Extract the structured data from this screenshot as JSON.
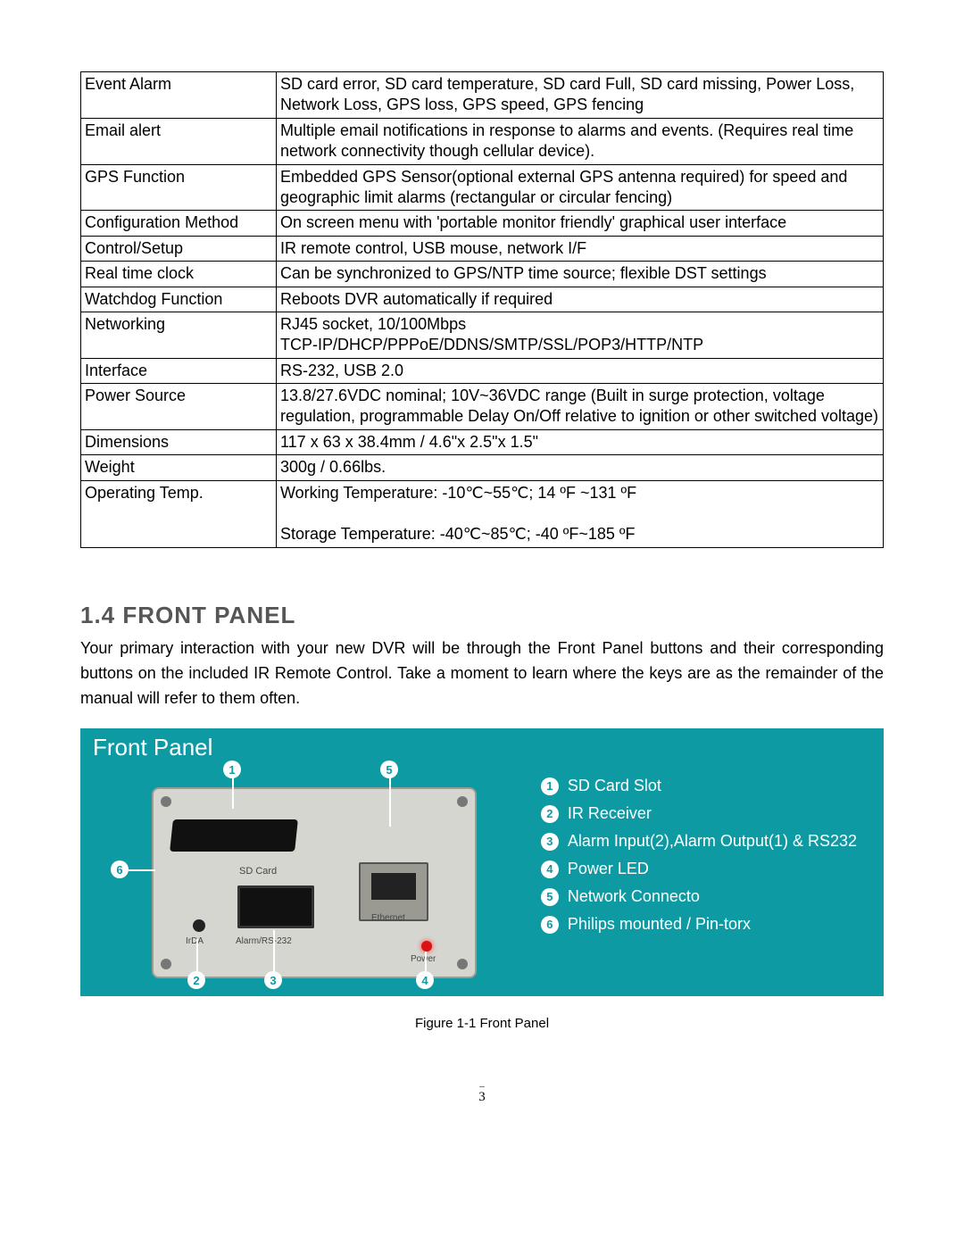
{
  "spec_table": {
    "rows": [
      {
        "label": "Event Alarm",
        "value": "SD card error, SD card temperature, SD card Full, SD card missing, Power Loss, Network Loss, GPS loss, GPS speed, GPS fencing"
      },
      {
        "label": "Email alert",
        "value": "Multiple email notifications in response to alarms and events. (Requires real time network connectivity though cellular device)."
      },
      {
        "label": "GPS Function",
        "value": "Embedded GPS Sensor(optional external GPS antenna required) for speed and geographic limit alarms (rectangular or circular fencing)"
      },
      {
        "label": "Configuration Method",
        "value": "On screen menu with 'portable monitor friendly' graphical user interface"
      },
      {
        "label": "Control/Setup",
        "value": "IR remote control, USB mouse, network I/F"
      },
      {
        "label": "Real time clock",
        "value": "Can be synchronized to GPS/NTP time source; flexible DST settings"
      },
      {
        "label": "Watchdog Function",
        "value": "Reboots DVR automatically if required"
      },
      {
        "label": "Networking",
        "value": "RJ45 socket, 10/100Mbps\nTCP-IP/DHCP/PPPoE/DDNS/SMTP/SSL/POP3/HTTP/NTP"
      },
      {
        "label": "Interface",
        "value": "RS-232, USB 2.0"
      },
      {
        "label": "Power Source",
        "value": "13.8/27.6VDC nominal; 10V~36VDC range (Built in surge protection, voltage regulation, programmable Delay On/Off relative to ignition or other switched voltage)"
      },
      {
        "label": "Dimensions",
        "value": "117 x 63 x 38.4mm / 4.6\"x 2.5\"x 1.5\""
      },
      {
        "label": "Weight",
        "value": "300g / 0.66lbs."
      },
      {
        "label": "Operating Temp.",
        "value": "Working Temperature: -10℃~55℃; 14 ºF ~131 ºF\n\nStorage Temperature: -40℃~85℃; -40 ºF~185 ºF"
      }
    ]
  },
  "section": {
    "number_title": "1.4  Front Panel",
    "paragraph": "Your primary interaction with your new DVR will be through the Front Panel buttons and their corresponding buttons on the included IR Remote Control.  Take a moment to learn where the keys are as the remainder of the manual will refer to them often."
  },
  "figure": {
    "title": "Front Panel",
    "bg_color": "#0d9aa3",
    "device_labels": {
      "sd": "SD Card",
      "irda": "IrDA",
      "alarm": "Alarm/RS-232",
      "ethernet": "Ethernet",
      "power": "Power"
    },
    "callouts": [
      "1",
      "2",
      "3",
      "4",
      "5",
      "6"
    ],
    "legend": [
      {
        "n": "1",
        "text": "SD Card Slot"
      },
      {
        "n": "2",
        "text": "IR Receiver"
      },
      {
        "n": "3",
        "text": "Alarm Input(2),Alarm Output(1) & RS232"
      },
      {
        "n": "4",
        "text": "Power LED"
      },
      {
        "n": "5",
        "text": "Network Connecto"
      },
      {
        "n": "6",
        "text": "Philips mounted / Pin-torx"
      }
    ],
    "caption": "Figure 1-1 Front Panel"
  },
  "page_number": "3"
}
